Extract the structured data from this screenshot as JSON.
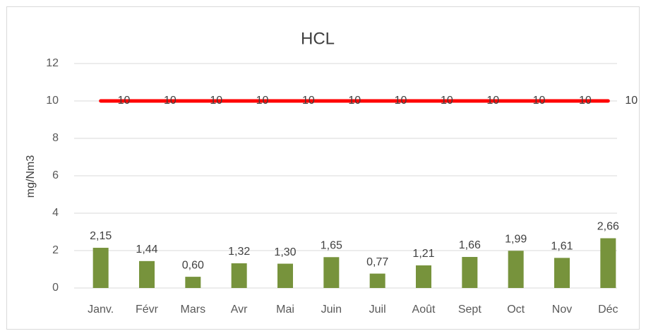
{
  "chart_data": {
    "type": "bar",
    "title": "HCL",
    "y_label": "mg/Nm3",
    "categories": [
      "Janv.",
      "Févr",
      "Mars",
      "Avr",
      "Mai",
      "Juin",
      "Juil",
      "Août",
      "Sept",
      "Oct",
      "Nov",
      "Déc"
    ],
    "series": [
      {
        "type": "bar",
        "color": "#77933c",
        "values": [
          2.15,
          1.44,
          0.6,
          1.32,
          1.3,
          1.65,
          0.77,
          1.21,
          1.66,
          1.99,
          1.61,
          2.66
        ],
        "value_labels": [
          "2,15",
          "1,44",
          "0,60",
          "1,32",
          "1,30",
          "1,65",
          "0,77",
          "1,21",
          "1,66",
          "1,99",
          "1,61",
          "2,66"
        ]
      },
      {
        "type": "line",
        "color": "#ff0000",
        "values": [
          10,
          10,
          10,
          10,
          10,
          10,
          10,
          10,
          10,
          10,
          10,
          10
        ]
      }
    ],
    "ylim": [
      0,
      12
    ],
    "yticks": [
      0,
      2,
      4,
      6,
      8,
      10,
      12
    ],
    "grid": true
  }
}
